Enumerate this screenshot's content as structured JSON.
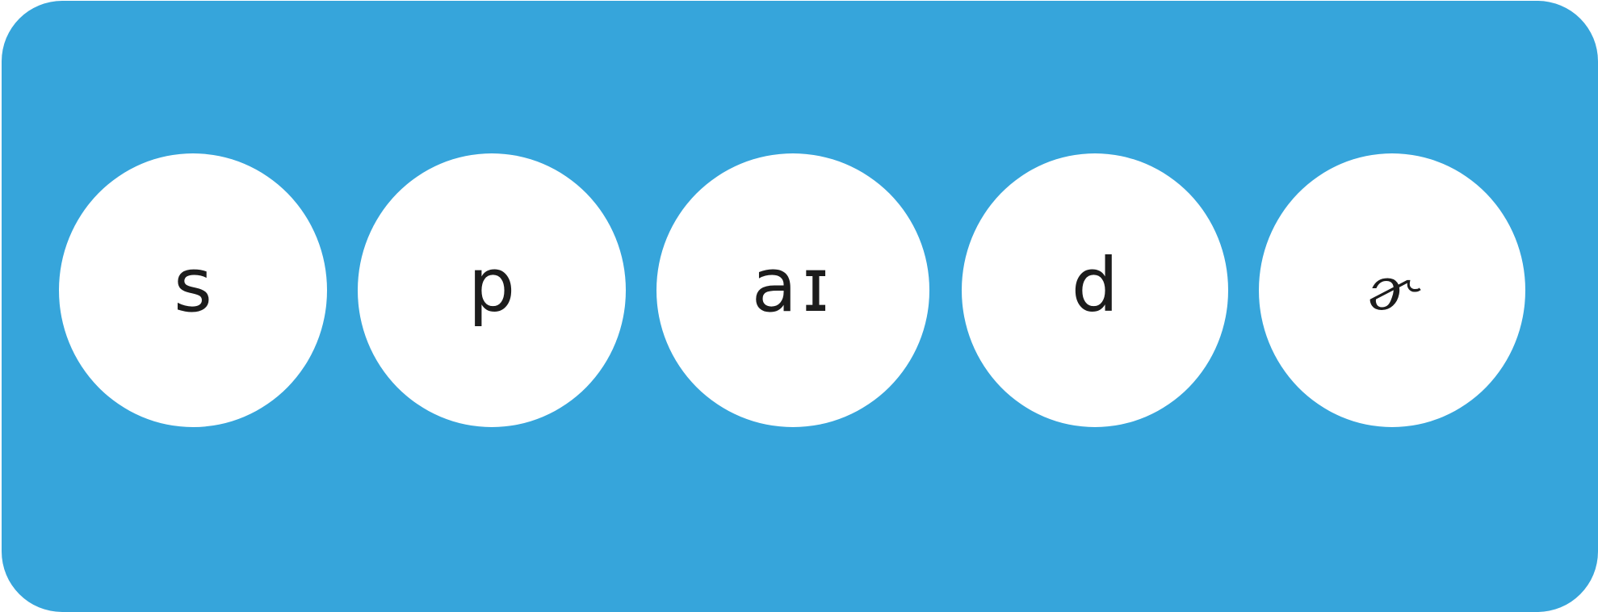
{
  "colors": {
    "panel": "#36a5db",
    "circle": "#ffffff",
    "text": "#1c1c1c"
  },
  "phonemes": [
    {
      "symbol": "s"
    },
    {
      "symbol": "p"
    },
    {
      "symbol": "aɪ"
    },
    {
      "symbol": "d"
    },
    {
      "symbol": "ɚ"
    }
  ]
}
